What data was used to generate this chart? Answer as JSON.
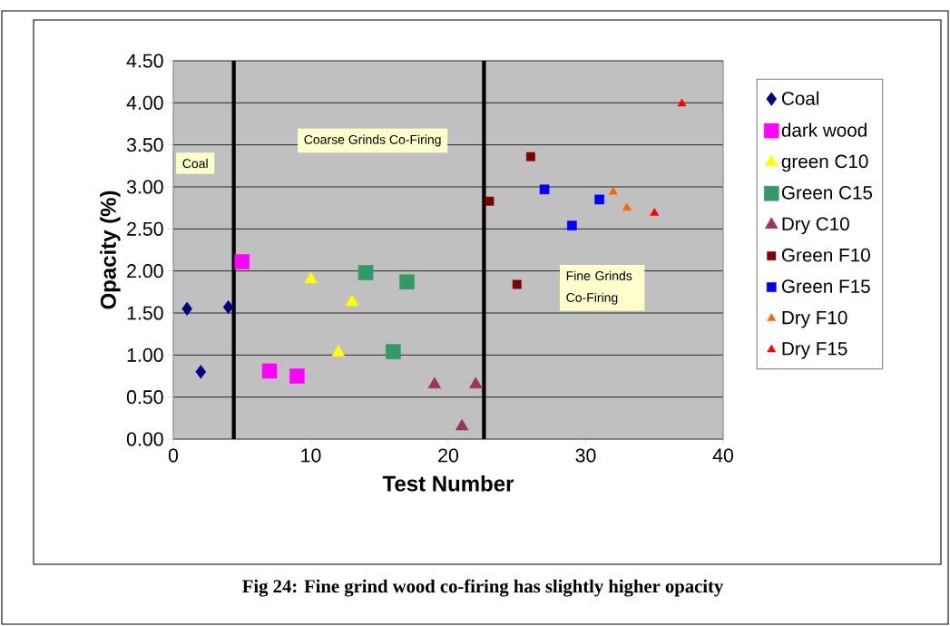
{
  "chart_data": {
    "type": "scatter",
    "xlabel": "Test Number",
    "ylabel": "Opacity (%)",
    "xlim": [
      0,
      40
    ],
    "xticks": [
      0,
      10,
      20,
      30,
      40
    ],
    "ylim": [
      0,
      4.5
    ],
    "yticks": [
      {
        "value": 0,
        "label": "0.00"
      },
      {
        "value": 0.5,
        "label": "0.50"
      },
      {
        "value": 1,
        "label": "1.00"
      },
      {
        "value": 1.5,
        "label": "1.50"
      },
      {
        "value": 2,
        "label": "2.00"
      },
      {
        "value": 2.5,
        "label": "2.50"
      },
      {
        "value": 3,
        "label": "3.00"
      },
      {
        "value": 3.5,
        "label": "3.50"
      },
      {
        "value": 4,
        "label": "4.00"
      },
      {
        "value": 4.5,
        "label": "4.50"
      }
    ],
    "grid": "y",
    "legend": "right",
    "series": [
      {
        "name": "Coal",
        "color": "#000080",
        "marker": "diamond",
        "x": [
          1,
          2,
          4
        ],
        "values": [
          1.55,
          0.8,
          1.57
        ]
      },
      {
        "name": "dark wood",
        "color": "#ff00ff",
        "marker": "square",
        "x": [
          5,
          7,
          9
        ],
        "values": [
          2.11,
          0.81,
          0.75
        ]
      },
      {
        "name": "green C10",
        "color": "#ffff00",
        "marker": "triangle",
        "x": [
          10,
          12,
          13
        ],
        "values": [
          1.9,
          1.03,
          1.63
        ]
      },
      {
        "name": "Green C15",
        "color": "#339966",
        "marker": "square",
        "x": [
          14,
          16,
          17
        ],
        "values": [
          1.98,
          1.04,
          1.87
        ]
      },
      {
        "name": "Dry C10",
        "color": "#993366",
        "marker": "triangle",
        "x": [
          19,
          21,
          22
        ],
        "values": [
          0.65,
          0.15,
          0.65
        ]
      },
      {
        "name": "Green F10",
        "color": "#800000",
        "marker": "square",
        "x": [
          23,
          25,
          26
        ],
        "values": [
          2.83,
          1.84,
          3.36
        ]
      },
      {
        "name": "Green F15",
        "color": "#0000ff",
        "marker": "square",
        "x": [
          27,
          29,
          31
        ],
        "values": [
          2.97,
          2.54,
          2.85
        ]
      },
      {
        "name": "Dry F10",
        "color": "#ff6600",
        "marker": "triangle",
        "x": [
          32,
          33
        ],
        "values": [
          2.94,
          2.75
        ]
      },
      {
        "name": "Dry F15",
        "color": "#ff0000",
        "marker": "triangle",
        "x": [
          35,
          37
        ],
        "values": [
          2.69,
          3.99
        ]
      }
    ],
    "ref_lines": [
      {
        "axis": "x",
        "value": 4.4,
        "color": "#000000"
      },
      {
        "axis": "x",
        "value": 22.6,
        "color": "#000000"
      }
    ],
    "annotations": [
      "Coal",
      "Coarse Grinds Co-Firing",
      "Fine Grinds Co-Firing",
      "Fig 24:  Fine grind wood co-firing has slightly higher opacity"
    ]
  }
}
